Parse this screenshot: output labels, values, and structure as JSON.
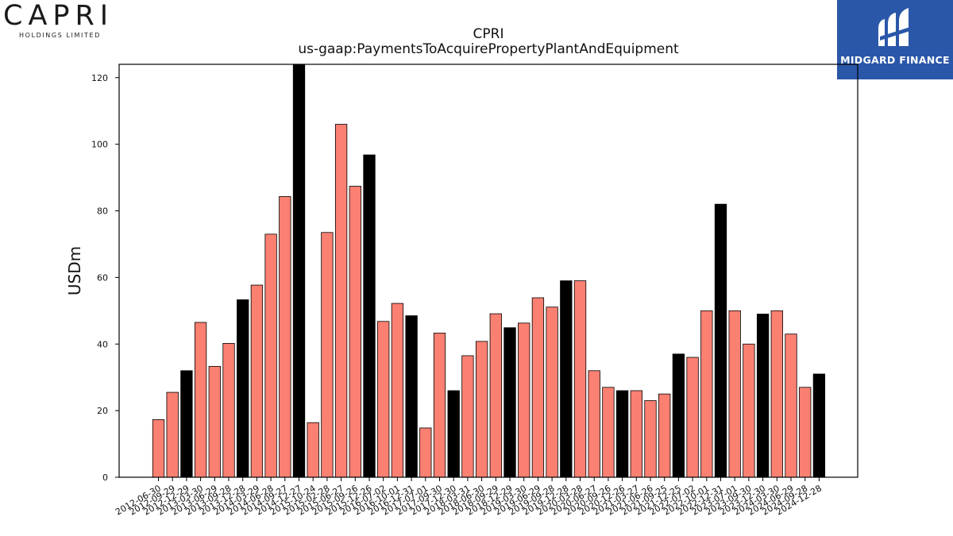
{
  "header": {
    "company_logo_text": "CAPRI",
    "company_logo_sub": "HOLDINGS LIMITED",
    "watermark_brand": "MIDGARD FINANCE"
  },
  "chart_data": {
    "type": "bar",
    "title": "CPRI",
    "subtitle": "us-gaap:PaymentsToAcquirePropertyPlantAndEquipment",
    "xlabel": "",
    "ylabel": "USDm",
    "ylim": [
      0,
      124
    ],
    "yticks": [
      0,
      20,
      40,
      60,
      80,
      100,
      120
    ],
    "grid": false,
    "colors": {
      "quarter": "#fa8072",
      "year_end": "#000000",
      "edge": "#000000"
    },
    "categories": [
      "2012-06-30",
      "2012-09-29",
      "2012-12-29",
      "2013-03-30",
      "2013-06-29",
      "2013-09-28",
      "2013-12-28",
      "2014-03-29",
      "2014-06-28",
      "2014-09-27",
      "2014-12-27",
      "2015-10-24",
      "2015-02-28",
      "2015-06-27",
      "2015-09-26",
      "2015-12-26",
      "2016-07-02",
      "2016-10-01",
      "2016-12-31",
      "2017-07-01",
      "2017-09-30",
      "2017-12-30",
      "2018-03-31",
      "2018-06-30",
      "2018-09-29",
      "2018-12-29",
      "2019-03-30",
      "2019-06-29",
      "2019-09-28",
      "2019-12-28",
      "2020-03-28",
      "2020-06-27",
      "2020-09-26",
      "2020-12-26",
      "2021-03-27",
      "2021-06-26",
      "2021-09-25",
      "2021-12-25",
      "2022-07-02",
      "2022-10-01",
      "2022-12-31",
      "2023-07-01",
      "2023-09-30",
      "2023-12-30",
      "2024-03-30",
      "2024-06-29",
      "2024-09-28",
      "2024-12-28"
    ],
    "values": [
      17.3,
      25.5,
      32,
      46.5,
      33.3,
      40.2,
      53.3,
      57.7,
      73,
      84.3,
      124,
      16.4,
      73.5,
      106,
      87.4,
      96.8,
      46.8,
      52.2,
      48.5,
      14.8,
      43.3,
      26,
      36.5,
      40.8,
      49.1,
      44.9,
      46.3,
      53.9,
      51.1,
      59,
      59,
      32,
      27,
      26,
      26,
      23,
      25,
      37,
      36,
      50,
      82,
      50,
      40,
      49,
      50,
      43,
      27,
      31
    ],
    "year_end": [
      false,
      false,
      true,
      false,
      false,
      false,
      true,
      false,
      false,
      false,
      true,
      false,
      false,
      false,
      false,
      true,
      false,
      false,
      true,
      false,
      false,
      true,
      false,
      false,
      false,
      true,
      false,
      false,
      false,
      true,
      false,
      false,
      false,
      true,
      false,
      false,
      false,
      true,
      false,
      false,
      true,
      false,
      false,
      true,
      false,
      false,
      false,
      true
    ]
  }
}
